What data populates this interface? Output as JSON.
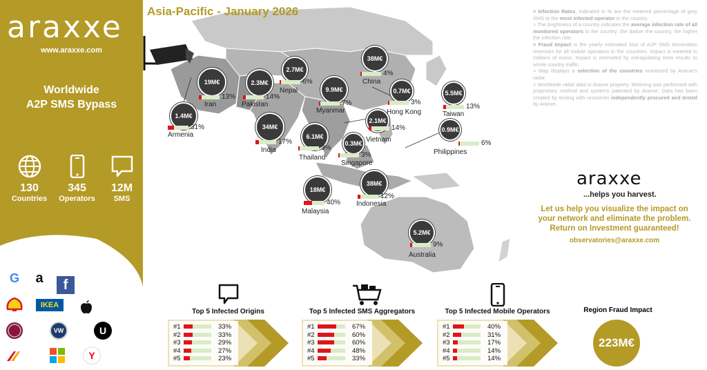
{
  "sidebar": {
    "logo": "araxxe",
    "url": "www.araxxe.com",
    "headline_line1": "Worldwide",
    "headline_line2": "A2P SMS Bypass",
    "stats": [
      {
        "icon": "globe-icon",
        "value": "130",
        "label": "Countries"
      },
      {
        "icon": "phone-icon",
        "value": "345",
        "label": "Operators"
      },
      {
        "icon": "sms-bubble-icon",
        "value": "12M",
        "label": "SMS"
      }
    ],
    "brands": [
      "google-logo",
      "amazon-logo",
      "facebook-logo",
      "shell-logo",
      "ikea-logo",
      "apple-logo",
      "fiat-logo",
      "volkswagen-logo",
      "uber-logo",
      "iberia-logo",
      "microsoft-logo",
      "yandex-logo"
    ],
    "brand_glyphs": {
      "google": "G",
      "amazon": "a",
      "facebook": "f",
      "ikea": "IKEA",
      "apple": "",
      "vw": "VW",
      "uber": "U",
      "yandex": "Y"
    }
  },
  "map": {
    "title": "Asia-Pacific - January 2026",
    "countries": [
      {
        "name": "Armenia",
        "impact": "1.4M€",
        "infection": 31,
        "pct_label": "31%"
      },
      {
        "name": "Iran",
        "impact": "19M€",
        "infection": 13,
        "pct_label": "13%"
      },
      {
        "name": "Pakistan",
        "impact": "2.3M€",
        "infection": 14,
        "pct_label": "14%"
      },
      {
        "name": "Nepal",
        "impact": "2.7M€",
        "infection": 6,
        "pct_label": "6%"
      },
      {
        "name": "India",
        "impact": "34M€",
        "infection": 17,
        "pct_label": "17%"
      },
      {
        "name": "Myanmar",
        "impact": "9.9M€",
        "infection": 7,
        "pct_label": "7%"
      },
      {
        "name": "China",
        "impact": "38M€",
        "infection": 4,
        "pct_label": "4%"
      },
      {
        "name": "Hong Kong",
        "impact": "0.7M€",
        "infection": 3,
        "pct_label": "3%"
      },
      {
        "name": "Taiwan",
        "impact": "5.5M€",
        "infection": 13,
        "pct_label": "13%"
      },
      {
        "name": "Vietnam",
        "impact": "2.1M€",
        "infection": 14,
        "pct_label": "14%"
      },
      {
        "name": "Thailand",
        "impact": "6.1M€",
        "infection": 3,
        "pct_label": "3%"
      },
      {
        "name": "Singapore",
        "impact": "0.3M€",
        "infection": 3,
        "pct_label": "3%"
      },
      {
        "name": "Philippines",
        "impact": "0.9M€",
        "infection": 6,
        "pct_label": "6%"
      },
      {
        "name": "Malaysia",
        "impact": "18M€",
        "infection": 40,
        "pct_label": "40%"
      },
      {
        "name": "Indonesia",
        "impact": "38M€",
        "infection": 12,
        "pct_label": "12%"
      },
      {
        "name": "Australia",
        "impact": "5.2M€",
        "infection": 9,
        "pct_label": "9%"
      }
    ]
  },
  "info": {
    "p1_pre": "> Infection Rates",
    "p1": ", indicated in % are the metered percentage of grey SMS to the ",
    "p1_b": "most infected operator",
    "p1_post": " in the country.",
    "p2": "> The brightness of a country indicates the ",
    "p2_b": "average infection rate of all monitored operators",
    "p2_post": " in the country: the darker the country, the higher the infection rate.",
    "p3_pre": "> Fraud Impact",
    "p3": " is the yearly estimated loss of A2P SMS termination revenues for all mobile operators in the countries. Impact is metered in millions of euros. Impact is estimated by extrapolating tests results to whole country traffic.",
    "p4": "> Map displays a ",
    "p4_b": "selection of the countries",
    "p4_post": " monitored by Araxxe's radar.",
    "p5": "> Worldwide radar data is Araxxe property. Metering was performed with proprietary method and systems patented by Araxxe. Data has been created by testing with resources ",
    "p5_b": "independently procured and tested",
    "p5_post": " by Araxxe."
  },
  "promo": {
    "logo": "araxxe",
    "tagline": "...helps you harvest.",
    "pitch_line1": "Let us help you visualize the impact on",
    "pitch_line2": "your network and eliminate the problem.",
    "pitch_line3": "Return on Investment guaranteed!",
    "email": "observatories@araxxe.com"
  },
  "panels": [
    {
      "title": "Top 5 Infected Origins",
      "icon": "sms-bubble-icon",
      "rows": [
        {
          "rank": "#1",
          "value": 33,
          "label": "33%"
        },
        {
          "rank": "#2",
          "value": 33,
          "label": "33%"
        },
        {
          "rank": "#3",
          "value": 29,
          "label": "29%"
        },
        {
          "rank": "#4",
          "value": 27,
          "label": "27%"
        },
        {
          "rank": "#5",
          "value": 23,
          "label": "23%"
        }
      ]
    },
    {
      "title": "Top 5 Infected SMS Aggregators",
      "icon": "cart-icon",
      "rows": [
        {
          "rank": "#1",
          "value": 67,
          "label": "67%"
        },
        {
          "rank": "#2",
          "value": 60,
          "label": "60%"
        },
        {
          "rank": "#3",
          "value": 60,
          "label": "60%"
        },
        {
          "rank": "#4",
          "value": 48,
          "label": "48%"
        },
        {
          "rank": "#5",
          "value": 33,
          "label": "33%"
        }
      ]
    },
    {
      "title": "Top 5 Infected Mobile Operators",
      "icon": "phone-icon",
      "rows": [
        {
          "rank": "#1",
          "value": 40,
          "label": "40%"
        },
        {
          "rank": "#2",
          "value": 31,
          "label": "31%"
        },
        {
          "rank": "#3",
          "value": 17,
          "label": "17%"
        },
        {
          "rank": "#4",
          "value": 14,
          "label": "14%"
        },
        {
          "rank": "#5",
          "value": 14,
          "label": "14%"
        }
      ]
    }
  ],
  "impact": {
    "label": "Region Fraud Impact",
    "value": "223M€"
  },
  "colors": {
    "gold": "#b49a26",
    "dark": "#3a3a3a",
    "red": "#e0151b",
    "lightgreen": "#d9ecc7"
  }
}
